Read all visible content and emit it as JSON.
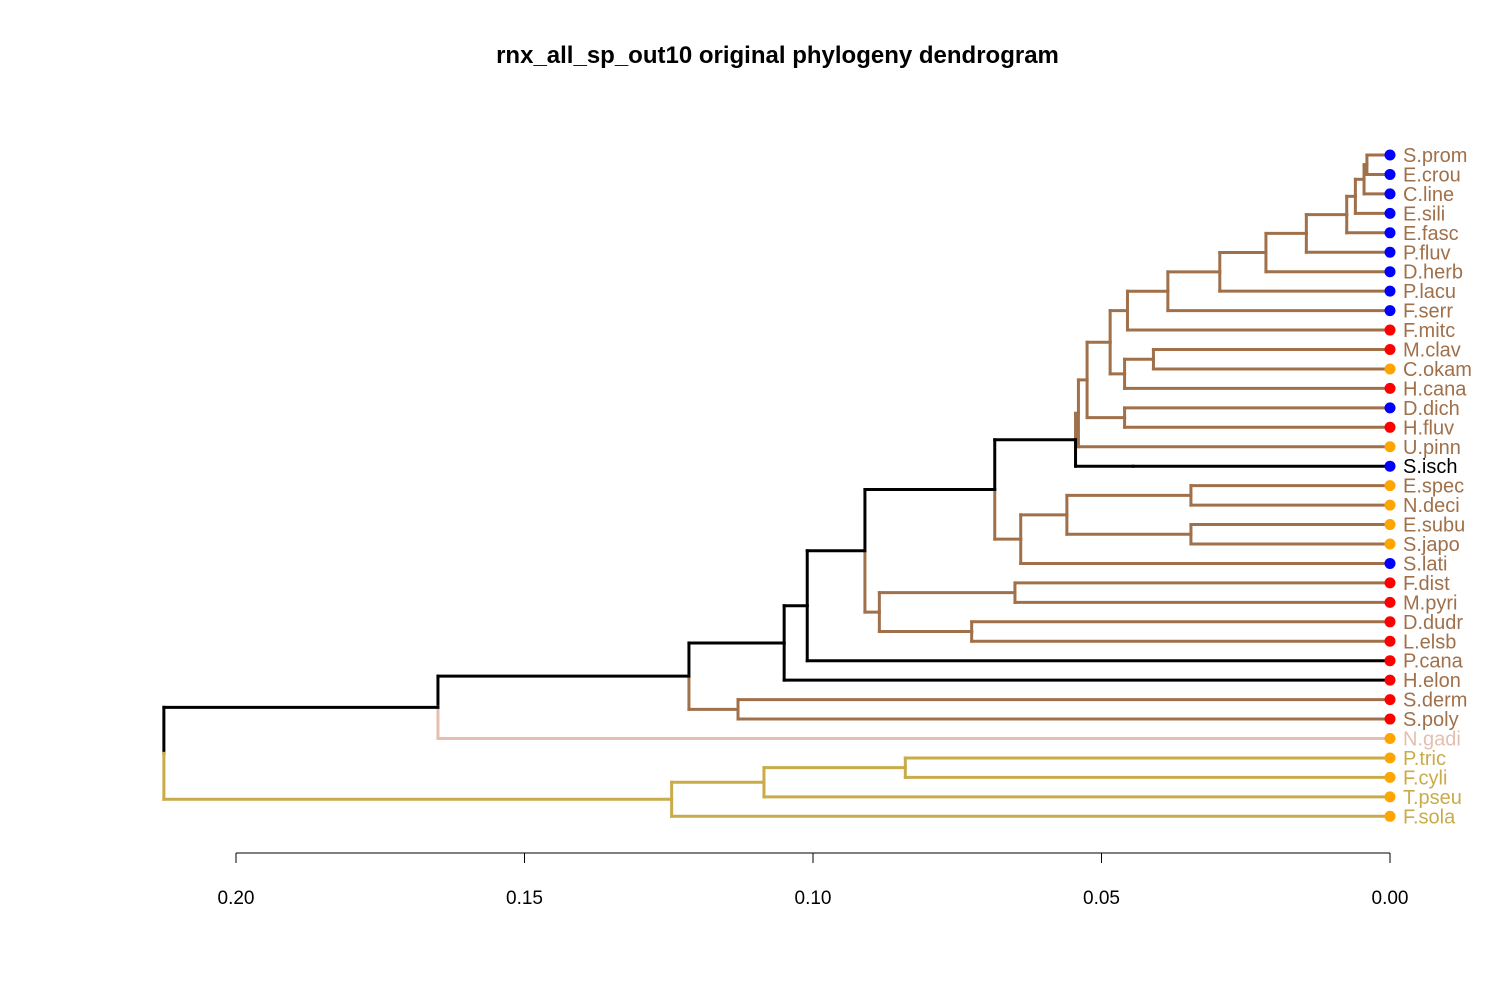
{
  "title": "rnx_all_sp_out10 original phylogeny dendrogram",
  "colors": {
    "main": "#a0704a",
    "root_path": "#000000",
    "outgroup": "#c9ac4a",
    "ngadi": "#e5bfae",
    "dot_blue": "#0000ff",
    "dot_red": "#ff0000",
    "dot_orange": "#ffa500"
  },
  "axis": {
    "ticks": [
      0.2,
      0.15,
      0.1,
      0.05,
      0.0
    ],
    "tick_labels": [
      "0.20",
      "0.15",
      "0.10",
      "0.05",
      "0.00"
    ],
    "range": [
      0.2,
      0.0
    ]
  },
  "leaves": [
    {
      "name": "S.prom",
      "dot": "dot_blue",
      "label_color": "main"
    },
    {
      "name": "E.crou",
      "dot": "dot_blue",
      "label_color": "main"
    },
    {
      "name": "C.line",
      "dot": "dot_blue",
      "label_color": "main"
    },
    {
      "name": "E.sili",
      "dot": "dot_blue",
      "label_color": "main"
    },
    {
      "name": "E.fasc",
      "dot": "dot_blue",
      "label_color": "main"
    },
    {
      "name": "P.fluv",
      "dot": "dot_blue",
      "label_color": "main"
    },
    {
      "name": "D.herb",
      "dot": "dot_blue",
      "label_color": "main"
    },
    {
      "name": "P.lacu",
      "dot": "dot_blue",
      "label_color": "main"
    },
    {
      "name": "F.serr",
      "dot": "dot_blue",
      "label_color": "main"
    },
    {
      "name": "F.mitc",
      "dot": "dot_red",
      "label_color": "main"
    },
    {
      "name": "M.clav",
      "dot": "dot_red",
      "label_color": "main"
    },
    {
      "name": "C.okam",
      "dot": "dot_orange",
      "label_color": "main"
    },
    {
      "name": "H.cana",
      "dot": "dot_red",
      "label_color": "main"
    },
    {
      "name": "D.dich",
      "dot": "dot_blue",
      "label_color": "main"
    },
    {
      "name": "H.fluv",
      "dot": "dot_red",
      "label_color": "main"
    },
    {
      "name": "U.pinn",
      "dot": "dot_orange",
      "label_color": "main"
    },
    {
      "name": "S.isch",
      "dot": "dot_blue",
      "label_color": "root_path"
    },
    {
      "name": "E.spec",
      "dot": "dot_orange",
      "label_color": "main"
    },
    {
      "name": "N.deci",
      "dot": "dot_orange",
      "label_color": "main"
    },
    {
      "name": "E.subu",
      "dot": "dot_orange",
      "label_color": "main"
    },
    {
      "name": "S.japo",
      "dot": "dot_orange",
      "label_color": "main"
    },
    {
      "name": "S.lati",
      "dot": "dot_blue",
      "label_color": "main"
    },
    {
      "name": "F.dist",
      "dot": "dot_red",
      "label_color": "main"
    },
    {
      "name": "M.pyri",
      "dot": "dot_red",
      "label_color": "main"
    },
    {
      "name": "D.dudr",
      "dot": "dot_red",
      "label_color": "main"
    },
    {
      "name": "L.elsb",
      "dot": "dot_red",
      "label_color": "main"
    },
    {
      "name": "P.cana",
      "dot": "dot_red",
      "label_color": "main"
    },
    {
      "name": "H.elon",
      "dot": "dot_red",
      "label_color": "main"
    },
    {
      "name": "S.derm",
      "dot": "dot_red",
      "label_color": "main"
    },
    {
      "name": "S.poly",
      "dot": "dot_red",
      "label_color": "main"
    },
    {
      "name": "N.gadi",
      "dot": "dot_orange",
      "label_color": "ngadi"
    },
    {
      "name": "P.tric",
      "dot": "dot_orange",
      "label_color": "outgroup"
    },
    {
      "name": "F.cyli",
      "dot": "dot_orange",
      "label_color": "outgroup"
    },
    {
      "name": "T.pseu",
      "dot": "dot_orange",
      "label_color": "outgroup"
    },
    {
      "name": "F.sola",
      "dot": "dot_orange",
      "label_color": "outgroup"
    }
  ],
  "tree": {
    "h": 0.2125,
    "color": "root_path",
    "children": [
      {
        "h": 0.165,
        "color": "root_path",
        "children": [
          {
            "h": 0.1215,
            "color": "root_path",
            "children": [
              {
                "h": 0.105,
                "color": "root_path",
                "children": [
                  {
                    "h": 0.101,
                    "color": "root_path",
                    "children": [
                      {
                        "h": 0.091,
                        "color": "root_path",
                        "children": [
                          {
                            "h": 0.0685,
                            "color": "root_path",
                            "children": [
                              {
                                "h": 0.0545,
                                "color": "root_path",
                                "children": [
                                  {
                                    "h": 0.054,
                                    "color": "main",
                                    "children": [
                                      {
                                        "h": 0.0525,
                                        "color": "main",
                                        "children": [
                                          {
                                            "h": 0.0485,
                                            "color": "main",
                                            "children": [
                                              {
                                                "h": 0.0455,
                                                "color": "main",
                                                "children": [
                                                  {
                                                    "h": 0.0385,
                                                    "color": "main",
                                                    "children": [
                                                      {
                                                        "h": 0.0295,
                                                        "color": "main",
                                                        "children": [
                                                          {
                                                            "h": 0.0215,
                                                            "color": "main",
                                                            "children": [
                                                              {
                                                                "h": 0.0145,
                                                                "color": "main",
                                                                "children": [
                                                                  {
                                                                    "h": 0.0075,
                                                                    "color": "main",
                                                                    "children": [
                                                                      {
                                                                        "h": 0.006,
                                                                        "color": "main",
                                                                        "children": [
                                                                          {
                                                                            "h": 0.0045,
                                                                            "color": "main",
                                                                            "children": [
                                                                              {
                                                                                "h": 0.004,
                                                                                "color": "main",
                                                                                "children": [
                                                                                  {
                                                                                    "leaf": 0
                                                                                  },
                                                                                  {
                                                                                    "leaf": 1
                                                                                  }
                                                                                ]
                                                                              },
                                                                              {
                                                                                "leaf": 2
                                                                              }
                                                                            ]
                                                                          },
                                                                          {
                                                                            "leaf": 3
                                                                          }
                                                                        ]
                                                                      },
                                                                      {
                                                                        "leaf": 4
                                                                      }
                                                                    ]
                                                                  },
                                                                  {
                                                                    "leaf": 5
                                                                  }
                                                                ]
                                                              },
                                                              {
                                                                "leaf": 6
                                                              }
                                                            ]
                                                          },
                                                          {
                                                            "leaf": 7
                                                          }
                                                        ]
                                                      },
                                                      {
                                                        "leaf": 8
                                                      }
                                                    ]
                                                  },
                                                  {
                                                    "leaf": 9
                                                  }
                                                ]
                                              },
                                              {
                                                "h": 0.046,
                                                "color": "main",
                                                "children": [
                                                  {
                                                    "h": 0.041,
                                                    "color": "main",
                                                    "children": [
                                                      {
                                                        "leaf": 10
                                                      },
                                                      {
                                                        "leaf": 11
                                                      }
                                                    ]
                                                  },
                                                  {
                                                    "leaf": 12
                                                  }
                                                ]
                                              }
                                            ]
                                          },
                                          {
                                            "h": 0.046,
                                            "color": "main",
                                            "children": [
                                              {
                                                "leaf": 13
                                              },
                                              {
                                                "leaf": 14
                                              }
                                            ]
                                          }
                                        ]
                                      },
                                      {
                                        "leaf": 15
                                      }
                                    ]
                                  },
                                  {
                                    "h": 0.0445,
                                    "color": "root_path",
                                    "children": [
                                      {
                                        "leaf": 16
                                      }
                                    ]
                                  }
                                ]
                              },
                              {
                                "h": 0.064,
                                "color": "main",
                                "children": [
                                  {
                                    "h": 0.056,
                                    "color": "main",
                                    "children": [
                                      {
                                        "h": 0.0345,
                                        "color": "main",
                                        "children": [
                                          {
                                            "leaf": 17
                                          },
                                          {
                                            "leaf": 18
                                          }
                                        ]
                                      },
                                      {
                                        "h": 0.0345,
                                        "color": "main",
                                        "children": [
                                          {
                                            "leaf": 19
                                          },
                                          {
                                            "leaf": 20
                                          }
                                        ]
                                      }
                                    ]
                                  },
                                  {
                                    "leaf": 21
                                  }
                                ]
                              }
                            ]
                          },
                          {
                            "h": 0.0885,
                            "color": "main",
                            "children": [
                              {
                                "h": 0.065,
                                "color": "main",
                                "children": [
                                  {
                                    "leaf": 22
                                  },
                                  {
                                    "leaf": 23
                                  }
                                ]
                              },
                              {
                                "h": 0.0725,
                                "color": "main",
                                "children": [
                                  {
                                    "leaf": 24
                                  },
                                  {
                                    "leaf": 25
                                  }
                                ]
                              }
                            ]
                          }
                        ]
                      },
                      {
                        "leaf": 26
                      }
                    ]
                  },
                  {
                    "leaf": 27
                  }
                ]
              },
              {
                "h": 0.113,
                "color": "main",
                "children": [
                  {
                    "leaf": 28
                  },
                  {
                    "leaf": 29
                  }
                ]
              }
            ]
          },
          {
            "leaf": 30,
            "color": "ngadi"
          }
        ]
      },
      {
        "h": 0.1245,
        "color": "outgroup",
        "children": [
          {
            "h": 0.1085,
            "color": "outgroup",
            "children": [
              {
                "h": 0.084,
                "color": "outgroup",
                "children": [
                  {
                    "leaf": 31
                  },
                  {
                    "leaf": 32
                  }
                ]
              },
              {
                "leaf": 33
              }
            ]
          },
          {
            "leaf": 34
          }
        ]
      }
    ]
  }
}
